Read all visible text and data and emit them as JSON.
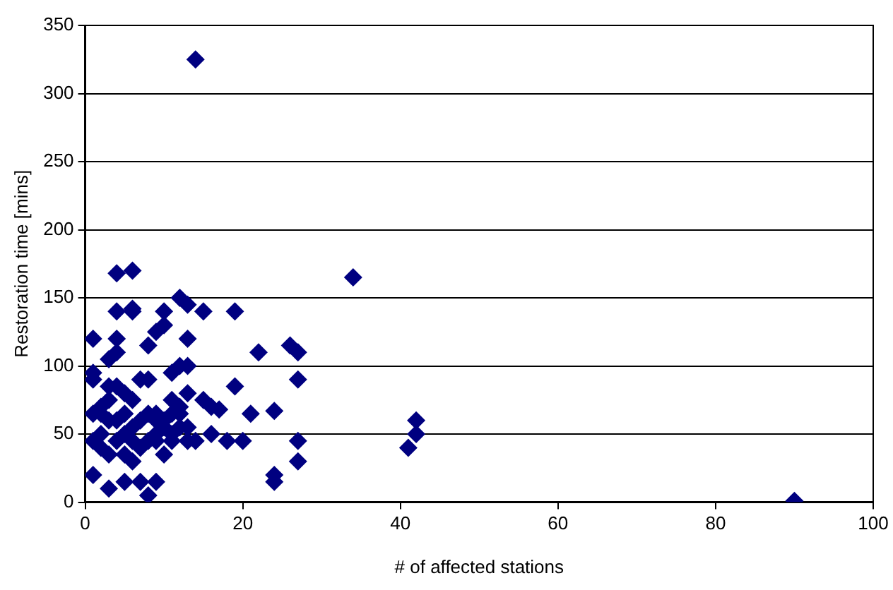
{
  "chart_data": {
    "type": "scatter",
    "xlabel": "# of affected stations",
    "ylabel": "Restoration time [mins]",
    "color": "#000080",
    "marker": "diamond",
    "grid": "y",
    "legend": false,
    "xlim": [
      0,
      100
    ],
    "xticks": [
      0,
      20,
      40,
      60,
      80,
      100
    ],
    "ylim": [
      0,
      350
    ],
    "yticks": [
      0,
      50,
      100,
      150,
      200,
      250,
      300,
      350
    ],
    "x": [
      14,
      34,
      90,
      4,
      6,
      4,
      6,
      6,
      10,
      12,
      13,
      15,
      19,
      1,
      4,
      4,
      3,
      8,
      9,
      10,
      13,
      22,
      26,
      27,
      1,
      1,
      7,
      8,
      11,
      12,
      13,
      19,
      27,
      3,
      4,
      5,
      6,
      3,
      2,
      1,
      2,
      3,
      5,
      7,
      8,
      9,
      10,
      11,
      12,
      13,
      15,
      16,
      17,
      21,
      24,
      12,
      1,
      2,
      3,
      4,
      5,
      6,
      5,
      6,
      7,
      9,
      9,
      10,
      11,
      12,
      13,
      14,
      16,
      18,
      20,
      27,
      27,
      24,
      24,
      41,
      42,
      42,
      1,
      3,
      5,
      7,
      8,
      9,
      4,
      6,
      10,
      11,
      13,
      2,
      8,
      9,
      11
    ],
    "values": [
      325,
      165,
      1,
      168,
      170,
      140,
      142,
      140,
      140,
      150,
      145,
      140,
      140,
      120,
      120,
      110,
      105,
      115,
      125,
      130,
      120,
      110,
      115,
      110,
      95,
      90,
      90,
      90,
      95,
      100,
      100,
      85,
      90,
      85,
      85,
      80,
      75,
      75,
      70,
      65,
      65,
      60,
      65,
      60,
      65,
      65,
      60,
      75,
      70,
      80,
      75,
      70,
      68,
      65,
      67,
      65,
      45,
      40,
      35,
      45,
      50,
      45,
      35,
      30,
      40,
      50,
      45,
      35,
      45,
      55,
      45,
      45,
      50,
      45,
      45,
      45,
      30,
      20,
      15,
      40,
      50,
      60,
      20,
      10,
      15,
      15,
      5,
      15,
      60,
      55,
      55,
      50,
      55,
      50,
      45,
      60,
      65
    ]
  }
}
